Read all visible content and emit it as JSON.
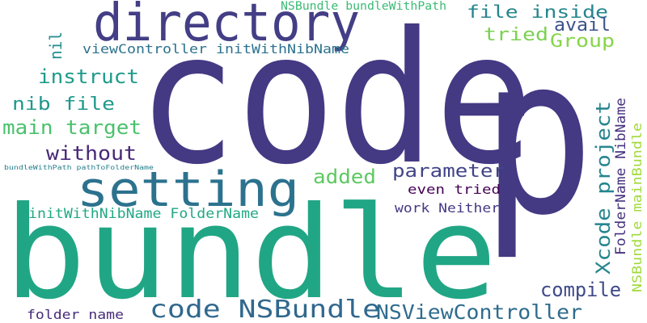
{
  "words": [
    {
      "id": "code",
      "text": "code",
      "color": "#443983"
    },
    {
      "id": "bundle",
      "text": "bundle",
      "color": "#21a685"
    },
    {
      "id": "p",
      "text": "p",
      "color": "#443983"
    },
    {
      "id": "directory",
      "text": "directory",
      "color": "#433e85"
    },
    {
      "id": "setting",
      "text": "setting",
      "color": "#2c728e"
    },
    {
      "id": "code_nsbundle",
      "text": "code NSBundle",
      "color": "#31688e"
    },
    {
      "id": "nsviewcontroller",
      "text": "NSViewController",
      "color": "#2f6c8e"
    },
    {
      "id": "xcode_project",
      "text": "Xcode project",
      "color": "#25858e"
    },
    {
      "id": "file_inside",
      "text": "file inside",
      "color": "#25858e"
    },
    {
      "id": "nsbundle_bundlewithpath",
      "text": "NSBundle bundleWithPath",
      "color": "#3bbb75"
    },
    {
      "id": "avail",
      "text": "avail",
      "color": "#3b528b"
    },
    {
      "id": "tried",
      "text": "tried",
      "color": "#7ad151"
    },
    {
      "id": "group",
      "text": "Group",
      "color": "#86d549"
    },
    {
      "id": "nil",
      "text": "nil",
      "color": "#228c8d"
    },
    {
      "id": "viewcontroller_initwithnibname",
      "text": "viewController initWithNibName",
      "color": "#2c728e"
    },
    {
      "id": "instruct",
      "text": "instruct",
      "color": "#1e9b8a"
    },
    {
      "id": "nib_file",
      "text": "nib file",
      "color": "#1f988b"
    },
    {
      "id": "main_target",
      "text": "main target",
      "color": "#4ac16d"
    },
    {
      "id": "without",
      "text": "without",
      "color": "#482878"
    },
    {
      "id": "parameter",
      "text": "parameter",
      "color": "#414487"
    },
    {
      "id": "added",
      "text": "added",
      "color": "#5ec962"
    },
    {
      "id": "even_tried",
      "text": "even tried",
      "color": "#440154"
    },
    {
      "id": "bundlewithpath_pathtofoldername",
      "text": "bundleWithPath pathToFolderName",
      "color": "#277f8e"
    },
    {
      "id": "initwithnibname_foldername",
      "text": "initWithNibName FolderName",
      "color": "#22a884"
    },
    {
      "id": "work_neither",
      "text": "work Neither",
      "color": "#443a83"
    },
    {
      "id": "compile",
      "text": "compile",
      "color": "#3e4a89"
    },
    {
      "id": "foldername_nibname",
      "text": "FolderName NibName",
      "color": "#46327e"
    },
    {
      "id": "nsbundle_mainbundle",
      "text": "NSBundle mainBundle",
      "color": "#a0da39"
    },
    {
      "id": "folder_name",
      "text": "folder name",
      "color": "#472c7a"
    }
  ]
}
